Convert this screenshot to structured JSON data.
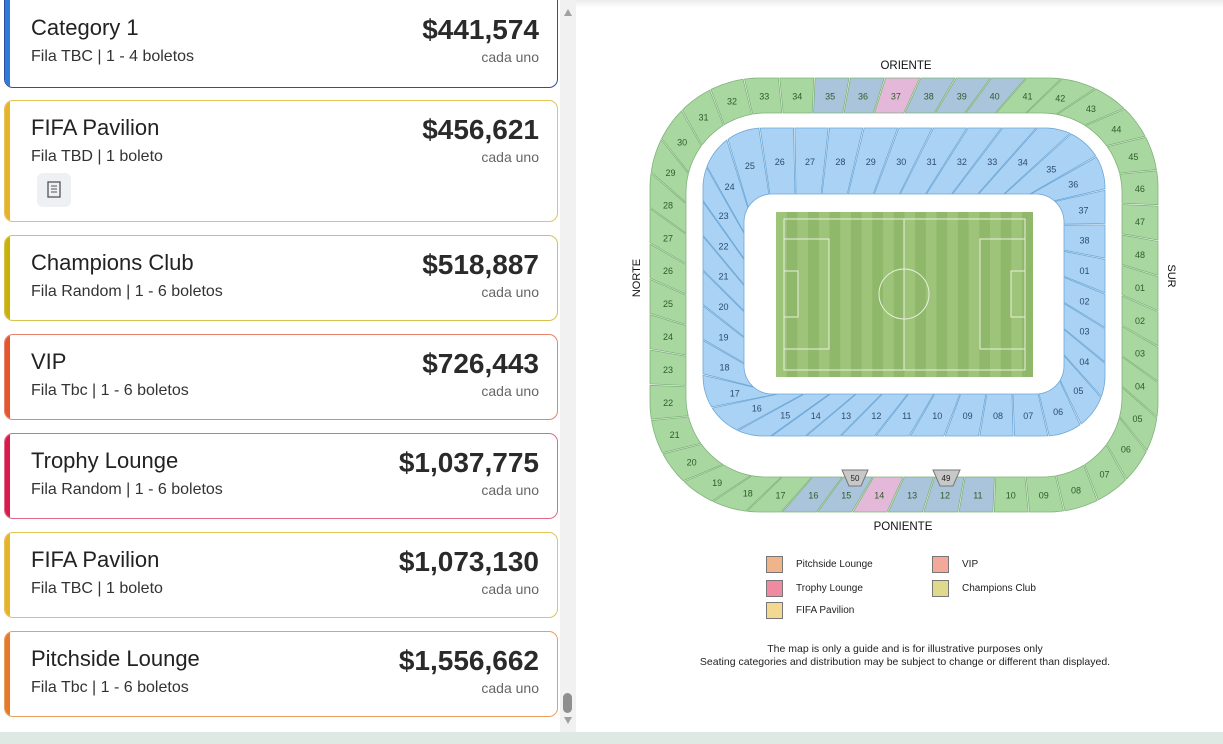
{
  "tickets": [
    {
      "name": "Category 1",
      "row": "Fila TBC | 1 - 4 boletos",
      "price": "$441,574",
      "each": "cada uno",
      "color": "#2f7bdc",
      "border": "#2f4f9a"
    },
    {
      "name": "FIFA Pavilion",
      "row": "Fila TBD | 1 boleto",
      "price": "$456,621",
      "each": "cada uno",
      "color": "#e5b42a",
      "border": "#e5c25a"
    },
    {
      "name": "Champions Club",
      "row": "Fila Random | 1 - 6 boletos",
      "price": "$518,887",
      "each": "cada uno",
      "color": "#c8b20a",
      "border": "#d6c34e"
    },
    {
      "name": "VIP",
      "row": "Fila Tbc | 1 - 6 boletos",
      "price": "$726,443",
      "each": "cada uno",
      "color": "#e4572e",
      "border": "#e8826a"
    },
    {
      "name": "Trophy Lounge",
      "row": "Fila Random | 1 - 6 boletos",
      "price": "$1,037,775",
      "each": "cada uno",
      "color": "#d81b4c",
      "border": "#e06a88"
    },
    {
      "name": "FIFA Pavilion",
      "row": "Fila TBC | 1 boleto",
      "price": "$1,073,130",
      "each": "cada uno",
      "color": "#e5b42a",
      "border": "#e5c25a"
    },
    {
      "name": "Pitchside Lounge",
      "row": "Fila Tbc | 1 - 6 boletos",
      "price": "$1,556,662",
      "each": "cada uno",
      "color": "#e8782a",
      "border": "#e8a060"
    }
  ],
  "map": {
    "north": "NORTE",
    "south": "SUR",
    "east": "ORIENTE",
    "west": "PONIENTE",
    "outer_sections": [
      "01",
      "02",
      "03",
      "04",
      "05",
      "06",
      "07",
      "08",
      "09",
      "10",
      "11",
      "12",
      "13",
      "14",
      "15",
      "16",
      "17",
      "18",
      "19",
      "20",
      "21",
      "22",
      "23",
      "24",
      "25",
      "26",
      "27",
      "28",
      "29",
      "30",
      "31",
      "32",
      "33",
      "34",
      "35",
      "36",
      "37",
      "38",
      "39",
      "40",
      "41",
      "42",
      "43",
      "44",
      "45",
      "46",
      "47",
      "48"
    ],
    "inner_sections": [
      "01",
      "02",
      "03",
      "04",
      "05",
      "06",
      "07",
      "08",
      "09",
      "10",
      "11",
      "12",
      "13",
      "14",
      "15",
      "16",
      "17",
      "18",
      "19",
      "20",
      "21",
      "22",
      "23",
      "24",
      "25",
      "26",
      "27",
      "28",
      "29",
      "30",
      "31",
      "32",
      "33",
      "34",
      "35",
      "36",
      "37",
      "38"
    ],
    "gate_left": "50",
    "gate_right": "49"
  },
  "legend": [
    {
      "label": "Pitchside Lounge",
      "color": "#f0b48a"
    },
    {
      "label": "VIP",
      "color": "#f4a89a"
    },
    {
      "label": "Trophy Lounge",
      "color": "#f08aa0"
    },
    {
      "label": "Champions Club",
      "color": "#e0d88a"
    },
    {
      "label": "FIFA Pavilion",
      "color": "#f2d890"
    }
  ],
  "disclaimer": {
    "line1": "The map is only a guide and is for illustrative purposes only",
    "line2": "Seating categories and distribution may be subject to change or different than displayed."
  }
}
